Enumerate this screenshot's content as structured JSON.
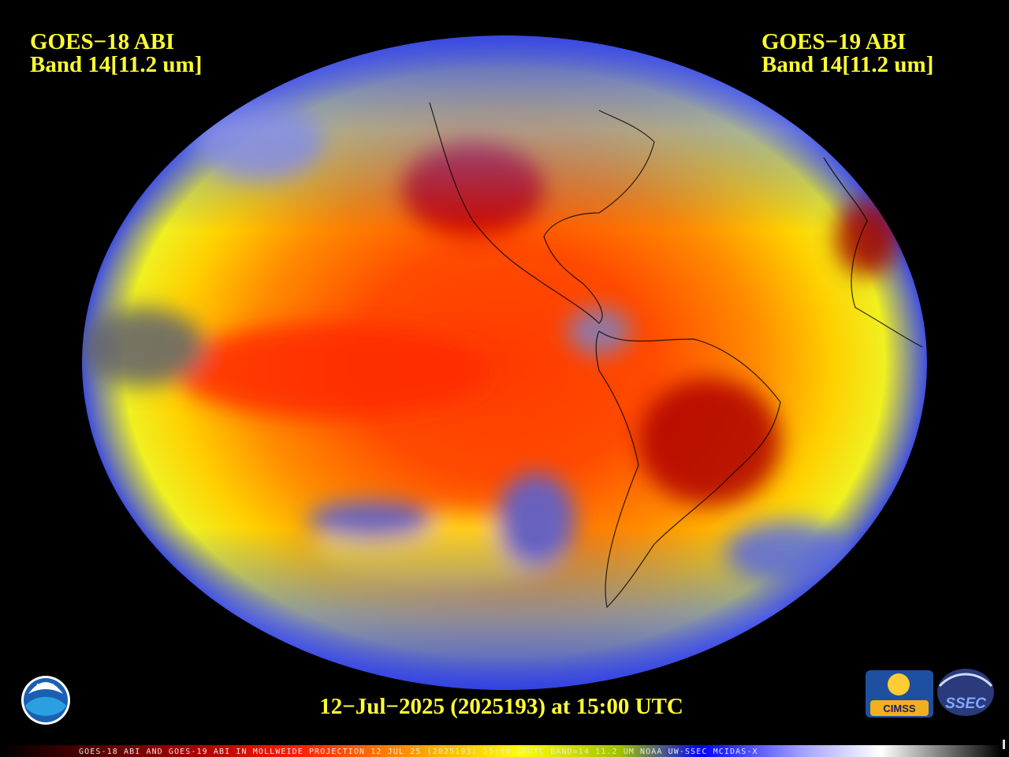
{
  "header": {
    "left_satellite": "GOES−18 ABI",
    "left_band": "Band 14[11.2 um]",
    "right_satellite": "GOES−19 ABI",
    "right_band": "Band 14[11.2 um]"
  },
  "timestamp": "12−Jul−2025 (2025193) at 15:00 UTC",
  "footer": "GOES-18 ABI AND GOES-19 ABI IN MOLLWEIDE PROJECTION 12 JUL 25 (2025193) 15:00:20UTC BAND=14 11.2 UM NOAA UW-SSEC MCIDAS-X",
  "logos": {
    "noaa": "NOAA",
    "cimss": "CIMSS",
    "ssec": "SSEC"
  }
}
